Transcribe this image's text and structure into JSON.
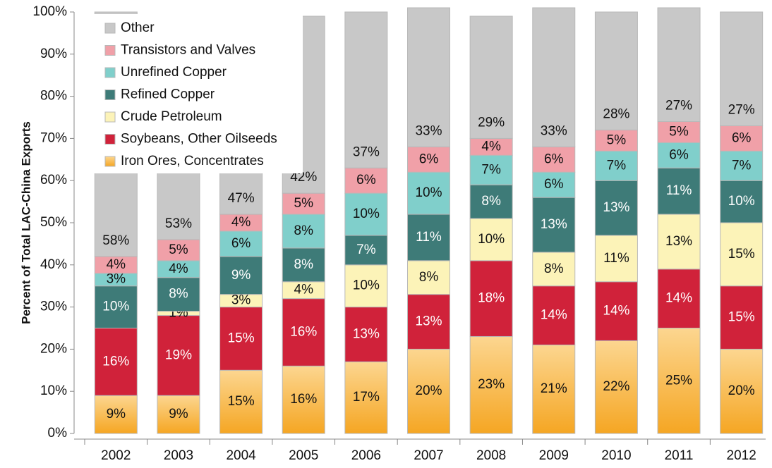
{
  "chart_data": {
    "type": "stacked_bar",
    "y_label": "Percent of Total LAC-China Exports",
    "categories": [
      "2002",
      "2003",
      "2004",
      "2005",
      "2006",
      "2007",
      "2008",
      "2009",
      "2010",
      "2011",
      "2012"
    ],
    "series": [
      {
        "name": "Iron Ores, Concentrates",
        "color": "#f5a623",
        "label_color": "#111",
        "values": [
          9,
          9,
          15,
          16,
          17,
          20,
          23,
          21,
          22,
          25,
          20
        ]
      },
      {
        "name": "Soybeans, Other Oilseeds",
        "color": "#d0223a",
        "label_color": "#fff",
        "values": [
          16,
          19,
          15,
          16,
          13,
          13,
          18,
          14,
          14,
          14,
          15
        ]
      },
      {
        "name": "Crude Petroleum",
        "color": "#fcf3b8",
        "label_color": "#111",
        "values": [
          0,
          1,
          3,
          4,
          10,
          8,
          10,
          8,
          11,
          13,
          15
        ]
      },
      {
        "name": "Refined Copper",
        "color": "#3e7b78",
        "label_color": "#fff",
        "values": [
          10,
          8,
          9,
          8,
          7,
          11,
          8,
          13,
          13,
          11,
          10
        ]
      },
      {
        "name": "Unrefined Copper",
        "color": "#80cfcb",
        "label_color": "#111",
        "values": [
          3,
          4,
          6,
          8,
          10,
          10,
          7,
          6,
          7,
          6,
          7
        ]
      },
      {
        "name": "Transistors and Valves",
        "color": "#f0a0a8",
        "label_color": "#111",
        "values": [
          4,
          5,
          4,
          5,
          6,
          6,
          4,
          6,
          5,
          5,
          6
        ]
      },
      {
        "name": "Other",
        "color": "#c8c8c8",
        "label_color": "#111",
        "values": [
          58,
          53,
          47,
          42,
          37,
          33,
          29,
          33,
          28,
          27,
          27
        ]
      }
    ],
    "ylim": [
      0,
      100
    ],
    "yticks": [
      {
        "value": 0,
        "label": "0%"
      },
      {
        "value": 10,
        "label": "10%"
      },
      {
        "value": 20,
        "label": "20%"
      },
      {
        "value": 30,
        "label": "30%"
      },
      {
        "value": 40,
        "label": "40%"
      },
      {
        "value": 50,
        "label": "50%"
      },
      {
        "value": 60,
        "label": "60%"
      },
      {
        "value": 70,
        "label": "70%"
      },
      {
        "value": 80,
        "label": "80%"
      },
      {
        "value": 90,
        "label": "90%"
      },
      {
        "value": 100,
        "label": "100%"
      }
    ],
    "legend": "upper left"
  }
}
